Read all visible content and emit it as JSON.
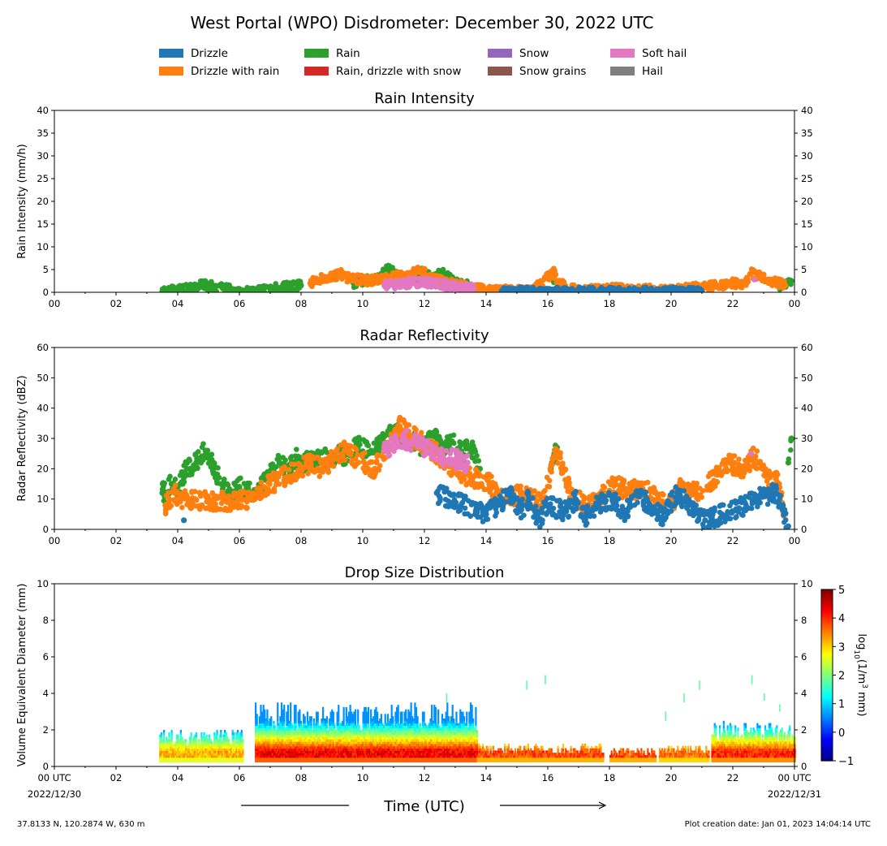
{
  "figure": {
    "title": "West Portal (WPO) Disdrometer: December 30, 2022 UTC",
    "location": "37.8133 N, 120.2874 W, 630 m",
    "creation_date": "Plot creation date: Jan 01, 2023 14:04:14 UTC"
  },
  "legend": [
    {
      "label": "Drizzle",
      "color": "#1f77b4"
    },
    {
      "label": "Drizzle with rain",
      "color": "#ff7f0e"
    },
    {
      "label": "Rain",
      "color": "#2ca02c"
    },
    {
      "label": "Rain, drizzle with snow",
      "color": "#d62728"
    },
    {
      "label": "Snow",
      "color": "#9467bd"
    },
    {
      "label": "Snow grains",
      "color": "#8c564b"
    },
    {
      "label": "Soft hail",
      "color": "#e377c2"
    },
    {
      "label": "Hail",
      "color": "#7f7f7f"
    }
  ],
  "chart_data": [
    {
      "type": "scatter",
      "title": "Rain Intensity",
      "ylabel": "Rain Intensity (mm/h)",
      "xlim": [
        0,
        24
      ],
      "ylim": [
        0,
        40
      ],
      "yticks": [
        0,
        5,
        10,
        15,
        20,
        25,
        30,
        35,
        40
      ],
      "xtick_labels": [
        "00",
        "02",
        "04",
        "06",
        "08",
        "10",
        "12",
        "14",
        "16",
        "18",
        "20",
        "22",
        "00"
      ],
      "grid": false,
      "series": [
        {
          "name": "Rain",
          "color": "#2ca02c",
          "x": [
            3.5,
            4.0,
            4.5,
            4.8,
            5.0,
            5.5,
            6.0,
            6.6,
            7.0,
            7.5,
            8.0,
            9.7,
            10.0,
            10.5,
            10.8,
            11.2,
            11.6,
            11.9,
            12.3,
            12.6,
            13.0,
            13.4,
            16.2,
            23.5,
            23.9
          ],
          "y": [
            0.2,
            0.5,
            1.0,
            1.8,
            1.5,
            0.8,
            0.3,
            0.3,
            0.8,
            1.2,
            1.5,
            2.0,
            2.5,
            3.0,
            5.3,
            3.5,
            2.8,
            4.5,
            3.0,
            4.6,
            2.0,
            1.5,
            2.2,
            1.5,
            2.5
          ]
        },
        {
          "name": "Drizzle with rain",
          "color": "#ff7f0e",
          "x": [
            8.3,
            8.6,
            9.0,
            9.3,
            9.5,
            10.2,
            10.9,
            11.5,
            11.8,
            12.5,
            14.0,
            14.8,
            15.5,
            16.2,
            16.3,
            17.0,
            18.2,
            19.0,
            20.0,
            21.5,
            22.0,
            22.4,
            22.6,
            23.0,
            23.4,
            23.7
          ],
          "y": [
            2.0,
            2.8,
            3.5,
            4.0,
            3.2,
            2.5,
            3.5,
            3.8,
            5.0,
            2.5,
            0.5,
            0.4,
            0.3,
            4.5,
            2.0,
            0.4,
            0.8,
            0.6,
            0.5,
            1.5,
            2.0,
            1.8,
            4.2,
            3.0,
            2.2,
            1.5
          ]
        },
        {
          "name": "Drizzle",
          "color": "#1f77b4",
          "x": [
            14.5,
            15.0,
            15.8,
            16.6,
            17.2,
            17.6,
            18.6,
            19.4,
            20.5,
            21.0
          ],
          "y": [
            0.1,
            0.2,
            0.1,
            0.1,
            0.2,
            0.1,
            0.2,
            0.1,
            0.2,
            0.1
          ]
        },
        {
          "name": "Soft hail",
          "color": "#e377c2",
          "x": [
            10.7,
            11.9,
            12.8,
            13.6,
            22.7
          ],
          "y": [
            1.5,
            2.3,
            1.5,
            0.8,
            2.8
          ]
        }
      ]
    },
    {
      "type": "scatter",
      "title": "Radar Reflectivity",
      "ylabel": "Radar Reflectivity (dBZ)",
      "xlim": [
        0,
        24
      ],
      "ylim": [
        0,
        60
      ],
      "yticks": [
        0,
        10,
        20,
        30,
        40,
        50,
        60
      ],
      "xtick_labels": [
        "00",
        "02",
        "04",
        "06",
        "08",
        "10",
        "12",
        "14",
        "16",
        "18",
        "20",
        "22",
        "00"
      ],
      "grid": false,
      "series": [
        {
          "name": "Rain",
          "color": "#2ca02c",
          "x": [
            3.5,
            3.8,
            4.0,
            4.3,
            4.6,
            4.9,
            5.1,
            5.4,
            5.7,
            6.0,
            6.6,
            7.0,
            7.3,
            7.6,
            7.9,
            8.1,
            9.6,
            9.9,
            10.2,
            10.6,
            11.0,
            11.4,
            11.7,
            12.0,
            12.3,
            12.6,
            12.9,
            13.2,
            13.5,
            13.8,
            16.1,
            16.3,
            23.8,
            23.9
          ],
          "y": [
            12,
            15,
            14,
            20,
            22,
            26,
            23,
            15,
            12,
            14,
            12,
            18,
            22,
            20,
            24,
            22,
            25,
            28,
            25,
            28,
            32,
            30,
            29,
            27,
            31,
            26,
            29,
            25,
            27,
            20,
            20,
            27,
            22,
            30
          ]
        },
        {
          "name": "Drizzle with rain",
          "color": "#ff7f0e",
          "x": [
            3.6,
            3.9,
            4.1,
            5.6,
            6.5,
            6.8,
            7.2,
            8.3,
            8.7,
            9.1,
            9.4,
            10.4,
            10.8,
            11.2,
            12.4,
            12.7,
            13.3,
            14.1,
            14.6,
            15.2,
            15.8,
            16.3,
            16.8,
            17.4,
            18.2,
            18.6,
            19.0,
            19.6,
            20.0,
            20.4,
            20.8,
            21.5,
            21.9,
            22.3,
            22.7,
            23.1,
            23.5,
            23.7
          ],
          "y": [
            8,
            12,
            10,
            9,
            10,
            14,
            16,
            22,
            20,
            24,
            26,
            20,
            28,
            34,
            25,
            22,
            18,
            15,
            10,
            12,
            8,
            26,
            10,
            8,
            15,
            12,
            14,
            10,
            8,
            15,
            12,
            18,
            22,
            20,
            24,
            18,
            15,
            5
          ]
        },
        {
          "name": "Drizzle",
          "color": "#1f77b4",
          "x": [
            4.2,
            12.4,
            14.0,
            14.4,
            14.8,
            15.1,
            15.4,
            15.7,
            16.0,
            16.6,
            16.9,
            17.2,
            17.6,
            18.1,
            18.5,
            18.9,
            19.3,
            19.7,
            20.2,
            20.5,
            20.8,
            21.1,
            22.2,
            22.8,
            23.4,
            23.8
          ],
          "y": [
            3,
            12,
            5,
            8,
            12,
            6,
            10,
            3,
            8,
            6,
            10,
            4,
            8,
            10,
            5,
            12,
            8,
            4,
            12,
            9,
            6,
            3,
            7,
            10,
            12,
            1
          ]
        },
        {
          "name": "Soft hail",
          "color": "#e377c2",
          "x": [
            10.7,
            11.3,
            12.0,
            12.6,
            13.4,
            22.6
          ],
          "y": [
            26,
            30,
            27,
            24,
            22,
            25
          ]
        }
      ]
    },
    {
      "type": "heatmap",
      "title": "Drop Size Distribution",
      "ylabel": "Volume Equivalent Diameter (mm)",
      "xlabel": "Time (UTC)",
      "xlim": [
        0,
        24
      ],
      "ylim": [
        0,
        10
      ],
      "yticks": [
        0,
        2,
        4,
        6,
        8,
        10
      ],
      "xtick_labels": [
        "00 UTC",
        "02",
        "04",
        "06",
        "08",
        "10",
        "12",
        "14",
        "16",
        "18",
        "20",
        "22",
        "00 UTC"
      ],
      "date_labels": [
        "2022/12/30",
        "2022/12/31"
      ],
      "colorbar": {
        "label": "log10(1/m3 mm)",
        "min": -1,
        "max": 5,
        "ticks": [
          -1,
          0,
          1,
          2,
          3,
          4,
          5
        ],
        "colormap": "jet"
      },
      "segments": [
        {
          "t0": 3.4,
          "t1": 6.1,
          "top": 2.0,
          "peak": 3.2
        },
        {
          "t0": 6.5,
          "t1": 13.7,
          "top": 3.5,
          "peak": 4.3
        },
        {
          "t0": 13.7,
          "t1": 17.8,
          "top": 1.2,
          "peak": 3.8
        },
        {
          "t0": 18.0,
          "t1": 19.5,
          "top": 1.0,
          "peak": 3.8
        },
        {
          "t0": 19.6,
          "t1": 21.2,
          "top": 1.1,
          "peak": 3.6
        },
        {
          "t0": 21.3,
          "t1": 24.0,
          "top": 2.4,
          "peak": 4.0
        }
      ],
      "isolated": [
        {
          "t": 12.7,
          "d0": 3.5,
          "d1": 4.0
        },
        {
          "t": 15.3,
          "d0": 4.2,
          "d1": 4.7
        },
        {
          "t": 15.9,
          "d0": 4.5,
          "d1": 5.0
        },
        {
          "t": 19.8,
          "d0": 2.5,
          "d1": 3.0
        },
        {
          "t": 20.4,
          "d0": 3.5,
          "d1": 4.0
        },
        {
          "t": 20.9,
          "d0": 4.2,
          "d1": 4.7
        },
        {
          "t": 22.6,
          "d0": 4.5,
          "d1": 5.0
        },
        {
          "t": 23.0,
          "d0": 3.6,
          "d1": 4.0
        },
        {
          "t": 23.5,
          "d0": 3.0,
          "d1": 3.4
        }
      ]
    }
  ]
}
